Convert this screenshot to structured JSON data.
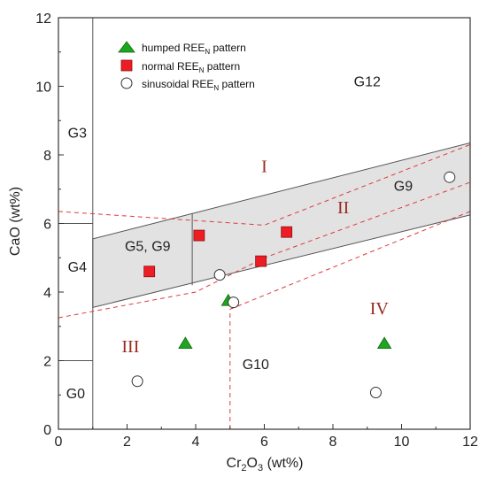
{
  "chart_data": {
    "type": "scatter",
    "xlabel": {
      "main": "Cr",
      "sub1": "2",
      "mid": "O",
      "sub2": "3",
      "unit": " (wt%)"
    },
    "ylabel": "CaO (wt%)",
    "xlim": [
      0,
      12
    ],
    "ylim": [
      0,
      12
    ],
    "x_ticks": [
      "0",
      "2",
      "4",
      "6",
      "8",
      "10",
      "12"
    ],
    "y_ticks": [
      "0",
      "2",
      "4",
      "6",
      "8",
      "10",
      "12"
    ],
    "grid": false,
    "legend_position": "top-left",
    "series": [
      {
        "name": {
          "pre": "humped REE",
          "sub": "N",
          "post": " pattern"
        },
        "marker": "triangle",
        "color": "#1fa51f",
        "points": [
          [
            3.7,
            2.5
          ],
          [
            4.95,
            3.75
          ],
          [
            9.5,
            2.5
          ]
        ]
      },
      {
        "name": {
          "pre": "normal REE",
          "sub": "N",
          "post": " pattern"
        },
        "marker": "square",
        "color": "#ee1c25",
        "points": [
          [
            2.65,
            4.6
          ],
          [
            4.1,
            5.65
          ],
          [
            5.9,
            4.9
          ],
          [
            6.65,
            5.75
          ]
        ]
      },
      {
        "name": {
          "pre": "sinusoidal REE",
          "sub": "N",
          "post": " pattern"
        },
        "marker": "circle",
        "color": "#ffffff",
        "points": [
          [
            2.3,
            1.4
          ],
          [
            4.7,
            4.5
          ],
          [
            5.1,
            3.7
          ],
          [
            9.25,
            1.07
          ],
          [
            11.4,
            7.35
          ]
        ]
      }
    ],
    "field_labels": [
      {
        "text": "G12",
        "x": 9.0,
        "y": 10.0
      },
      {
        "text": "G3",
        "x": 0.55,
        "y": 8.5
      },
      {
        "text": "G4",
        "x": 0.55,
        "y": 4.6
      },
      {
        "text": "G0",
        "x": 0.5,
        "y": 0.9
      },
      {
        "text": "G5, G9",
        "x": 2.6,
        "y": 5.2
      },
      {
        "text": "G9",
        "x": 10.05,
        "y": 6.95
      },
      {
        "text": "G10",
        "x": 5.75,
        "y": 1.75
      }
    ],
    "roman_labels": [
      {
        "text": "I",
        "x": 6.0,
        "y": 7.5
      },
      {
        "text": "II",
        "x": 8.3,
        "y": 6.3
      },
      {
        "text": "III",
        "x": 2.1,
        "y": 2.25
      },
      {
        "text": "IV",
        "x": 9.35,
        "y": 3.35
      }
    ],
    "shaded_field": [
      [
        1.0,
        3.55
      ],
      [
        1.0,
        5.55
      ],
      [
        12.0,
        8.35
      ],
      [
        12.0,
        6.25
      ]
    ],
    "field_boundaries": [
      [
        [
          1.0,
          0.0
        ],
        [
          1.0,
          12.0
        ]
      ],
      [
        [
          0.0,
          6.0
        ],
        [
          1.0,
          6.0
        ]
      ],
      [
        [
          0.0,
          2.0
        ],
        [
          1.0,
          2.0
        ]
      ],
      [
        [
          3.9,
          6.3
        ],
        [
          3.9,
          4.2
        ]
      ]
    ],
    "dashed_boundaries": [
      [
        [
          0.0,
          6.35
        ],
        [
          6.0,
          5.95
        ],
        [
          12.0,
          8.3
        ]
      ],
      [
        [
          0.0,
          3.25
        ],
        [
          4.0,
          4.0
        ],
        [
          6.0,
          5.0
        ],
        [
          12.0,
          7.2
        ]
      ],
      [
        [
          5.0,
          3.5
        ],
        [
          12.0,
          6.35
        ]
      ],
      [
        [
          5.0,
          0.0
        ],
        [
          5.0,
          3.5
        ]
      ]
    ],
    "colors": {
      "shade": "#e2e2e2",
      "dashed": "#e0393c",
      "axis": "#333333",
      "roman": "#9b2a1f"
    }
  }
}
